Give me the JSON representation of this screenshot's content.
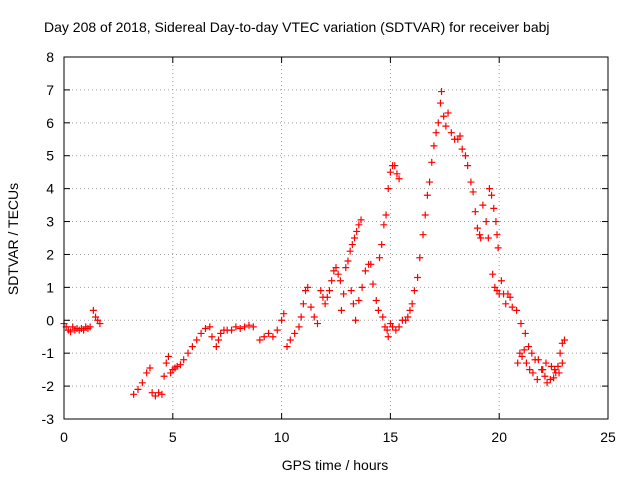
{
  "chart_data": {
    "type": "scatter",
    "title": "Day 208 of 2018, Sidereal Day-to-day VTEC variation (SDTVAR) for receiver babj",
    "xlabel": "GPS time / hours",
    "ylabel": "SDTVAR / TECUs",
    "xlim": [
      0,
      25
    ],
    "ylim": [
      -3,
      8
    ],
    "xticks": [
      0,
      5,
      10,
      15,
      20,
      25
    ],
    "yticks": [
      -3,
      -2,
      -1,
      0,
      1,
      2,
      3,
      4,
      5,
      6,
      7,
      8
    ],
    "grid": true,
    "marker": "+",
    "series": [
      {
        "name": "SDTVAR",
        "color": "#ff0000",
        "points": [
          [
            0.0,
            -0.1
          ],
          [
            0.1,
            -0.2
          ],
          [
            0.2,
            -0.3
          ],
          [
            0.3,
            -0.35
          ],
          [
            0.4,
            -0.2
          ],
          [
            0.5,
            -0.3
          ],
          [
            0.6,
            -0.25
          ],
          [
            0.7,
            -0.3
          ],
          [
            0.8,
            -0.25
          ],
          [
            0.9,
            -0.3
          ],
          [
            1.0,
            -0.2
          ],
          [
            1.1,
            -0.25
          ],
          [
            1.2,
            -0.2
          ],
          [
            1.35,
            0.3
          ],
          [
            1.45,
            0.1
          ],
          [
            1.55,
            0.0
          ],
          [
            1.65,
            -0.1
          ],
          [
            3.2,
            -2.25
          ],
          [
            3.4,
            -2.1
          ],
          [
            3.6,
            -1.9
          ],
          [
            3.8,
            -1.6
          ],
          [
            3.95,
            -1.45
          ],
          [
            4.05,
            -2.2
          ],
          [
            4.2,
            -2.3
          ],
          [
            4.35,
            -2.2
          ],
          [
            4.5,
            -2.25
          ],
          [
            4.6,
            -1.7
          ],
          [
            4.7,
            -1.3
          ],
          [
            4.8,
            -1.1
          ],
          [
            4.9,
            -1.6
          ],
          [
            5.0,
            -1.5
          ],
          [
            5.1,
            -1.45
          ],
          [
            5.2,
            -1.4
          ],
          [
            5.35,
            -1.35
          ],
          [
            5.5,
            -1.2
          ],
          [
            5.7,
            -1.0
          ],
          [
            5.9,
            -0.8
          ],
          [
            6.1,
            -0.6
          ],
          [
            6.3,
            -0.4
          ],
          [
            6.5,
            -0.25
          ],
          [
            6.7,
            -0.2
          ],
          [
            6.8,
            -0.5
          ],
          [
            7.0,
            -0.8
          ],
          [
            7.1,
            -0.6
          ],
          [
            7.2,
            -0.4
          ],
          [
            7.35,
            -0.3
          ],
          [
            7.5,
            -0.3
          ],
          [
            7.7,
            -0.3
          ],
          [
            7.9,
            -0.2
          ],
          [
            8.1,
            -0.25
          ],
          [
            8.3,
            -0.2
          ],
          [
            8.5,
            -0.15
          ],
          [
            8.7,
            -0.2
          ],
          [
            9.0,
            -0.6
          ],
          [
            9.2,
            -0.5
          ],
          [
            9.4,
            -0.4
          ],
          [
            9.6,
            -0.5
          ],
          [
            9.8,
            -0.3
          ],
          [
            10.0,
            0.0
          ],
          [
            10.1,
            0.2
          ],
          [
            10.25,
            -0.8
          ],
          [
            10.4,
            -0.6
          ],
          [
            10.6,
            -0.4
          ],
          [
            10.8,
            -0.2
          ],
          [
            10.9,
            0.1
          ],
          [
            11.0,
            0.5
          ],
          [
            11.1,
            0.9
          ],
          [
            11.2,
            1.0
          ],
          [
            11.35,
            0.4
          ],
          [
            11.5,
            0.1
          ],
          [
            11.65,
            -0.1
          ],
          [
            11.8,
            0.9
          ],
          [
            11.9,
            0.7
          ],
          [
            12.0,
            0.5
          ],
          [
            12.1,
            0.7
          ],
          [
            12.2,
            0.9
          ],
          [
            12.3,
            1.2
          ],
          [
            12.4,
            1.5
          ],
          [
            12.5,
            1.6
          ],
          [
            12.6,
            1.4
          ],
          [
            12.7,
            1.2
          ],
          [
            12.75,
            0.3
          ],
          [
            12.85,
            0.8
          ],
          [
            12.95,
            1.6
          ],
          [
            13.05,
            1.8
          ],
          [
            13.15,
            2.1
          ],
          [
            13.25,
            2.3
          ],
          [
            13.35,
            2.5
          ],
          [
            13.45,
            2.7
          ],
          [
            13.55,
            2.9
          ],
          [
            13.65,
            3.05
          ],
          [
            13.2,
            0.9
          ],
          [
            13.3,
            0.5
          ],
          [
            13.4,
            0.0
          ],
          [
            13.55,
            0.6
          ],
          [
            13.7,
            1.0
          ],
          [
            13.85,
            1.5
          ],
          [
            14.0,
            1.7
          ],
          [
            14.1,
            1.7
          ],
          [
            14.2,
            1.1
          ],
          [
            14.35,
            0.6
          ],
          [
            14.45,
            0.3
          ],
          [
            14.5,
            1.9
          ],
          [
            14.6,
            2.3
          ],
          [
            14.7,
            2.9
          ],
          [
            14.8,
            3.2
          ],
          [
            14.9,
            4.0
          ],
          [
            15.0,
            4.5
          ],
          [
            15.1,
            4.7
          ],
          [
            15.2,
            4.7
          ],
          [
            15.3,
            4.45
          ],
          [
            15.4,
            4.3
          ],
          [
            14.65,
            0.1
          ],
          [
            14.75,
            -0.2
          ],
          [
            14.85,
            -0.3
          ],
          [
            14.9,
            -0.5
          ],
          [
            15.0,
            -0.1
          ],
          [
            15.1,
            -0.2
          ],
          [
            15.25,
            -0.3
          ],
          [
            15.4,
            -0.2
          ],
          [
            15.55,
            0.0
          ],
          [
            15.7,
            0.0
          ],
          [
            15.8,
            0.1
          ],
          [
            15.9,
            0.3
          ],
          [
            16.0,
            0.5
          ],
          [
            16.1,
            0.9
          ],
          [
            16.25,
            1.3
          ],
          [
            16.35,
            1.9
          ],
          [
            16.5,
            2.6
          ],
          [
            16.6,
            3.2
          ],
          [
            16.7,
            3.8
          ],
          [
            16.8,
            4.2
          ],
          [
            16.9,
            4.8
          ],
          [
            17.0,
            5.3
          ],
          [
            17.1,
            5.7
          ],
          [
            17.2,
            6.0
          ],
          [
            17.3,
            6.6
          ],
          [
            17.35,
            6.95
          ],
          [
            17.45,
            6.2
          ],
          [
            17.55,
            5.9
          ],
          [
            17.65,
            6.3
          ],
          [
            17.8,
            5.7
          ],
          [
            17.95,
            5.5
          ],
          [
            18.1,
            5.5
          ],
          [
            18.2,
            5.6
          ],
          [
            18.3,
            5.2
          ],
          [
            18.45,
            5.0
          ],
          [
            18.55,
            4.7
          ],
          [
            18.7,
            4.2
          ],
          [
            18.8,
            3.9
          ],
          [
            18.9,
            3.3
          ],
          [
            19.0,
            2.8
          ],
          [
            19.1,
            2.6
          ],
          [
            19.15,
            2.5
          ],
          [
            19.25,
            3.5
          ],
          [
            19.4,
            3.0
          ],
          [
            19.5,
            2.5
          ],
          [
            19.55,
            4.0
          ],
          [
            19.65,
            3.8
          ],
          [
            19.75,
            3.4
          ],
          [
            19.85,
            3.0
          ],
          [
            19.9,
            2.6
          ],
          [
            19.95,
            2.2
          ],
          [
            19.7,
            1.4
          ],
          [
            19.8,
            1.0
          ],
          [
            19.9,
            0.9
          ],
          [
            20.0,
            0.8
          ],
          [
            20.1,
            1.2
          ],
          [
            20.2,
            0.8
          ],
          [
            20.3,
            0.5
          ],
          [
            20.4,
            0.8
          ],
          [
            20.5,
            0.7
          ],
          [
            20.6,
            0.4
          ],
          [
            20.8,
            0.3
          ],
          [
            21.0,
            -0.1
          ],
          [
            21.2,
            -0.4
          ],
          [
            21.35,
            -0.8
          ],
          [
            21.5,
            -1.0
          ],
          [
            21.65,
            -1.2
          ],
          [
            21.8,
            -1.2
          ],
          [
            21.95,
            -1.5
          ],
          [
            22.1,
            -1.7
          ],
          [
            22.2,
            -1.9
          ],
          [
            22.35,
            -1.8
          ],
          [
            22.5,
            -1.75
          ],
          [
            22.6,
            -1.6
          ],
          [
            22.7,
            -1.4
          ],
          [
            22.8,
            -1.0
          ],
          [
            22.9,
            -0.7
          ],
          [
            23.0,
            -0.6
          ],
          [
            20.85,
            -1.3
          ],
          [
            20.95,
            -1.0
          ],
          [
            21.05,
            -1.1
          ],
          [
            21.15,
            -0.9
          ],
          [
            21.25,
            -1.3
          ],
          [
            21.4,
            -1.5
          ],
          [
            21.55,
            -1.6
          ],
          [
            21.75,
            -1.8
          ],
          [
            22.0,
            -1.5
          ],
          [
            22.15,
            -1.3
          ],
          [
            22.4,
            -1.4
          ],
          [
            22.55,
            -1.5
          ],
          [
            22.75,
            -1.6
          ],
          [
            22.9,
            -1.3
          ]
        ]
      }
    ]
  }
}
